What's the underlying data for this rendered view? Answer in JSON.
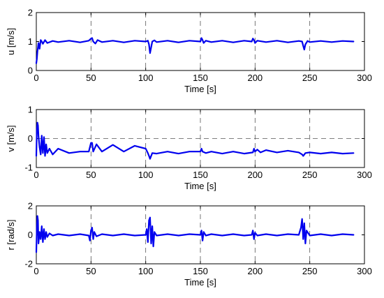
{
  "chart_data": [
    {
      "type": "line",
      "xlabel": "Time [s]",
      "ylabel": "u [m/s]",
      "xlim": [
        0,
        300
      ],
      "ylim": [
        0,
        2
      ],
      "xticks": [
        0,
        50,
        100,
        150,
        200,
        250,
        300
      ],
      "yticks": [
        0,
        1,
        2
      ],
      "xgrid": [
        50,
        100,
        150,
        200,
        250
      ],
      "ygrid": [],
      "color": "#0000ee",
      "series": [
        {
          "x": [
            0,
            0.5,
            1,
            1.5,
            2,
            3,
            4,
            5,
            6,
            8,
            10,
            15,
            20,
            30,
            40,
            48,
            50,
            51,
            52,
            54,
            56,
            60,
            70,
            80,
            90,
            100,
            102,
            103,
            104,
            105,
            106,
            108,
            110,
            120,
            130,
            140,
            150,
            151,
            152,
            153,
            155,
            160,
            170,
            180,
            190,
            197,
            198,
            199,
            200,
            202,
            210,
            220,
            230,
            240,
            243,
            244,
            245,
            246,
            248,
            250,
            260,
            270,
            280,
            290
          ],
          "y": [
            0.25,
            0.4,
            0.65,
            0.8,
            0.95,
            0.75,
            1.05,
            1.0,
            0.92,
            1.05,
            0.95,
            1.02,
            0.98,
            1.03,
            0.97,
            1.03,
            1.1,
            1.12,
            1.0,
            0.93,
            1.05,
            0.98,
            1.03,
            0.97,
            1.03,
            1.0,
            1.03,
            0.9,
            0.6,
            0.8,
            1.0,
            1.04,
            0.98,
            1.03,
            0.97,
            1.03,
            1.0,
            1.12,
            1.05,
            0.95,
            1.03,
            0.98,
            1.03,
            0.97,
            1.03,
            1.0,
            1.1,
            1.05,
            0.95,
            1.03,
            0.98,
            1.03,
            0.97,
            1.02,
            1.0,
            0.85,
            0.72,
            0.9,
            1.02,
            0.98,
            1.02,
            0.98,
            1.02,
            1.0
          ]
        }
      ]
    },
    {
      "type": "line",
      "xlabel": "Time [s]",
      "ylabel": "v [m/s]",
      "xlim": [
        0,
        300
      ],
      "ylim": [
        -1,
        1
      ],
      "xticks": [
        0,
        50,
        100,
        150,
        200,
        250,
        300
      ],
      "yticks": [
        -1,
        0,
        1
      ],
      "xgrid": [
        50,
        100,
        150,
        200,
        250
      ],
      "ygrid": [
        0
      ],
      "color": "#0000ee",
      "series": [
        {
          "x": [
            0,
            0.5,
            1,
            1.5,
            2,
            3,
            4,
            5,
            6,
            7,
            8,
            9,
            10,
            12,
            15,
            20,
            30,
            40,
            48,
            50,
            51,
            52,
            55,
            60,
            70,
            80,
            90,
            100,
            102,
            103,
            104,
            106,
            110,
            120,
            130,
            140,
            150,
            151,
            152,
            155,
            160,
            170,
            180,
            190,
            198,
            199,
            200,
            202,
            205,
            210,
            220,
            230,
            240,
            243,
            244,
            246,
            250,
            260,
            270,
            280,
            290
          ],
          "y": [
            -0.6,
            0.3,
            0.55,
            0.45,
            0.1,
            -0.3,
            -0.55,
            0.1,
            -0.5,
            0.05,
            -0.6,
            -0.2,
            -0.5,
            -0.35,
            -0.55,
            -0.35,
            -0.5,
            -0.45,
            -0.45,
            -0.15,
            -0.15,
            -0.45,
            -0.2,
            -0.45,
            -0.22,
            -0.45,
            -0.25,
            -0.35,
            -0.5,
            -0.6,
            -0.7,
            -0.5,
            -0.52,
            -0.45,
            -0.52,
            -0.45,
            -0.45,
            -0.35,
            -0.45,
            -0.5,
            -0.45,
            -0.52,
            -0.45,
            -0.52,
            -0.48,
            -0.35,
            -0.45,
            -0.38,
            -0.48,
            -0.4,
            -0.48,
            -0.42,
            -0.48,
            -0.55,
            -0.6,
            -0.5,
            -0.48,
            -0.52,
            -0.48,
            -0.52,
            -0.5
          ]
        }
      ]
    },
    {
      "type": "line",
      "xlabel": "Time [s]",
      "ylabel": "r [rad/s]",
      "xlim": [
        0,
        300
      ],
      "ylim": [
        -2,
        2
      ],
      "xticks": [
        0,
        50,
        100,
        150,
        200,
        250,
        300
      ],
      "yticks": [
        -2,
        0,
        2
      ],
      "xgrid": [
        50,
        100,
        150,
        200,
        250
      ],
      "ygrid": [],
      "color": "#0000ee",
      "series": [
        {
          "x": [
            0,
            0.5,
            1,
            1.5,
            2,
            3,
            4,
            5,
            6,
            7,
            8,
            9,
            10,
            12,
            15,
            20,
            30,
            40,
            48,
            49,
            50,
            51,
            52,
            53,
            55,
            60,
            70,
            80,
            90,
            100,
            101,
            102,
            103,
            104,
            105,
            106,
            107,
            108,
            110,
            120,
            130,
            140,
            150,
            151,
            152,
            153,
            155,
            160,
            170,
            180,
            190,
            197,
            198,
            199,
            200,
            202,
            210,
            220,
            230,
            240,
            242,
            243,
            244,
            245,
            246,
            247,
            250,
            260,
            270,
            280,
            290
          ],
          "y": [
            -1.2,
            0.5,
            1.3,
            1.0,
            -0.6,
            0.2,
            -0.3,
            0.6,
            -0.5,
            0.4,
            -0.3,
            0.2,
            -0.15,
            0.1,
            -0.05,
            0.05,
            -0.05,
            0.05,
            -0.05,
            -0.4,
            0.3,
            0.5,
            -0.3,
            0.2,
            -0.1,
            0.05,
            -0.05,
            0.05,
            -0.05,
            0.0,
            0.4,
            -0.5,
            1.0,
            1.2,
            -0.6,
            0.6,
            -0.8,
            0.2,
            -0.05,
            0.05,
            -0.05,
            0.05,
            0.0,
            0.3,
            -0.4,
            0.2,
            -0.05,
            0.05,
            -0.05,
            0.05,
            -0.05,
            0.0,
            0.3,
            -0.3,
            0.15,
            -0.05,
            0.05,
            -0.05,
            0.05,
            0.0,
            0.5,
            1.1,
            -0.3,
            0.8,
            -0.6,
            0.3,
            -0.05,
            0.05,
            -0.05,
            0.05,
            0.0
          ]
        }
      ]
    }
  ]
}
